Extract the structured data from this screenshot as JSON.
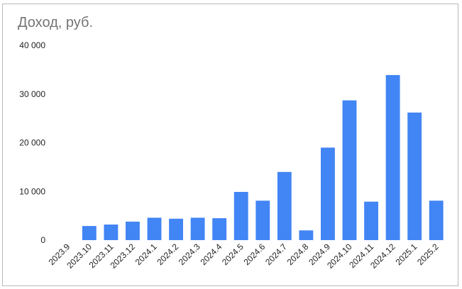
{
  "chart_data": {
    "type": "bar",
    "title": "Доход, руб.",
    "xlabel": "",
    "ylabel": "",
    "categories": [
      "2023.9",
      "2023.10",
      "2023.11",
      "2023.12",
      "2024.1",
      "2024.2",
      "2024.3",
      "2024.4",
      "2024.5",
      "2024.6",
      "2024.7",
      "2024.8",
      "2024.9",
      "2024.10",
      "2024.11",
      "2024.12",
      "2025.1",
      "2025.2"
    ],
    "values": [
      0,
      2900,
      3200,
      3800,
      4600,
      4400,
      4600,
      4500,
      9900,
      8100,
      14000,
      2000,
      19000,
      28700,
      7900,
      33900,
      26200,
      8100
    ],
    "ylim": [
      0,
      40000
    ],
    "yticks": [
      0,
      10000,
      20000,
      30000,
      40000
    ],
    "ytick_labels": [
      "0",
      "10 000",
      "20 000",
      "30 000",
      "40 000"
    ],
    "grid": false,
    "legend": "none",
    "bar_color": "#4285f4"
  }
}
